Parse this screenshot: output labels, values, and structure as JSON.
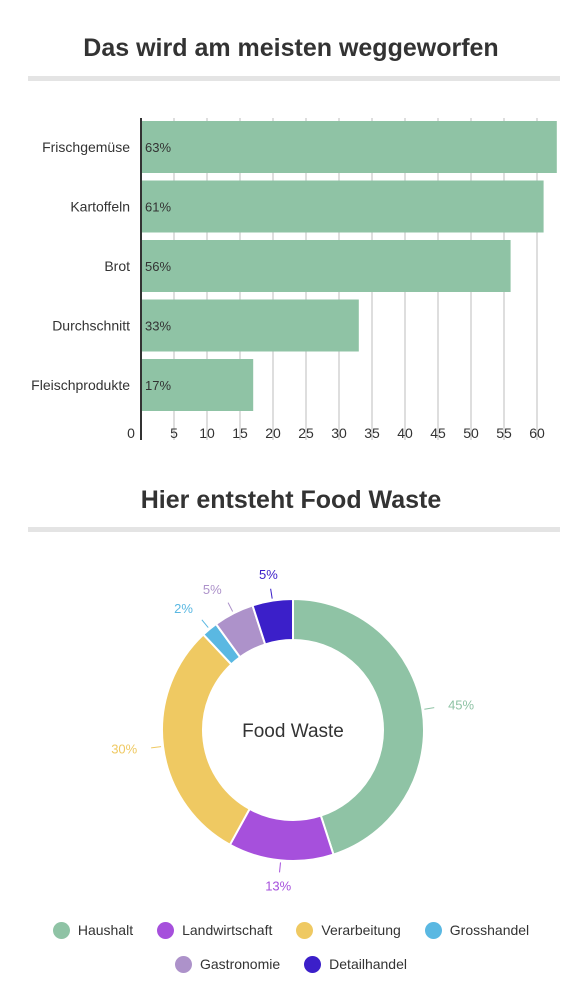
{
  "charts": {
    "bar_title": "Das wird am meisten weggeworfen",
    "donut_title": "Hier entsteht Food Waste"
  },
  "chart_data": [
    {
      "type": "bar",
      "orientation": "horizontal",
      "title": "Das wird am meisten weggeworfen",
      "categories": [
        "Frischgemüse",
        "Kartoffeln",
        "Brot",
        "Durchschnitt",
        "Fleischprodukte"
      ],
      "values": [
        63,
        61,
        56,
        33,
        17
      ],
      "value_labels": [
        "63%",
        "61%",
        "56%",
        "33%",
        "17%"
      ],
      "xlim": [
        0,
        64
      ],
      "ticks": [
        0,
        5,
        10,
        15,
        20,
        25,
        30,
        35,
        40,
        45,
        50,
        55,
        60
      ],
      "grid": true,
      "color": "#8fc3a5"
    },
    {
      "type": "pie",
      "donut": true,
      "title": "Hier entsteht Food Waste",
      "center_label": "Food Waste",
      "legend_position": "bottom",
      "slices": [
        {
          "name": "Haushalt",
          "value": 45,
          "label": "45%",
          "color": "#8fc3a5"
        },
        {
          "name": "Landwirtschaft",
          "value": 13,
          "label": "13%",
          "color": "#a650dc"
        },
        {
          "name": "Verarbeitung",
          "value": 30,
          "label": "30%",
          "color": "#efc962"
        },
        {
          "name": "Grosshandel",
          "value": 2,
          "label": "2%",
          "color": "#5ab8e2"
        },
        {
          "name": "Gastronomie",
          "value": 5,
          "label": "5%",
          "color": "#ad92ca"
        },
        {
          "name": "Detailhandel",
          "value": 5,
          "label": "5%",
          "color": "#3b1fc9"
        }
      ]
    }
  ]
}
